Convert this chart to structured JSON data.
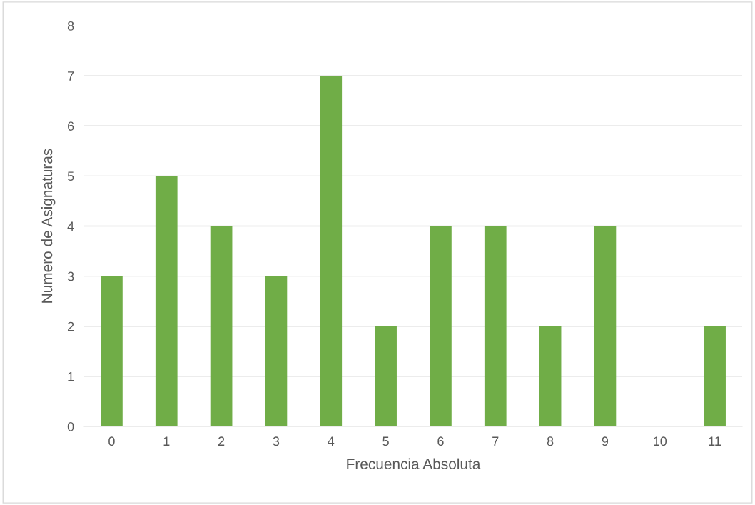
{
  "chart_data": {
    "type": "bar",
    "xlabel": "Frecuencia Absoluta",
    "ylabel": "Numero de Asignaturas",
    "categories": [
      "0",
      "1",
      "2",
      "3",
      "4",
      "5",
      "6",
      "7",
      "8",
      "9",
      "10",
      "11"
    ],
    "values": [
      3,
      5,
      4,
      3,
      7,
      2,
      4,
      4,
      2,
      4,
      0,
      2
    ],
    "color": "#70ad47",
    "ylim": [
      0,
      8
    ],
    "yticks": [
      0,
      1,
      2,
      3,
      4,
      5,
      6,
      7,
      8
    ],
    "grid": "y",
    "legend": false
  }
}
